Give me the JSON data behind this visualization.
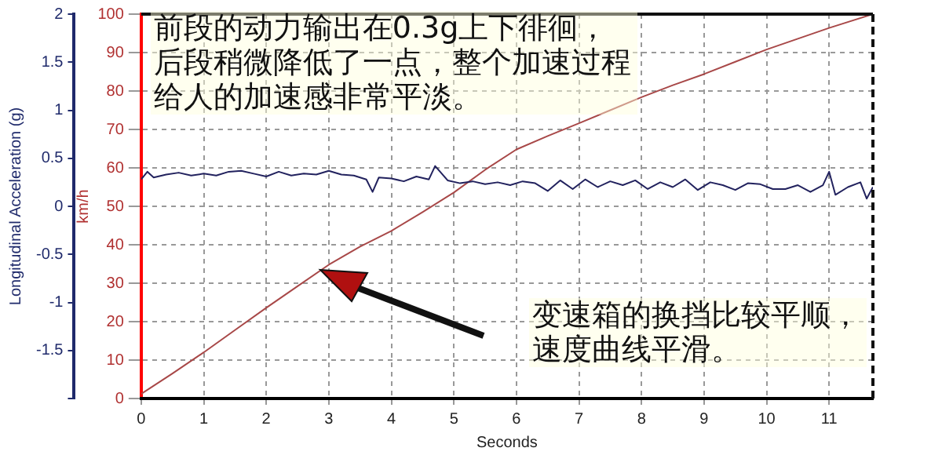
{
  "chart_data": {
    "type": "line",
    "xlabel": "Seconds",
    "ylabel": "Longitudinal Acceleration (g)",
    "y2label": "km/h",
    "xlim": [
      0,
      11.7
    ],
    "xticks": [
      0,
      1,
      2,
      3,
      4,
      5,
      6,
      7,
      8,
      9,
      10,
      11
    ],
    "ylim": [
      -2,
      2
    ],
    "yticks": [
      {
        "value": -2,
        "label": null
      },
      -1.5,
      -1,
      -0.5,
      0,
      0.5,
      1,
      1.5,
      2
    ],
    "y2lim": [
      0,
      100
    ],
    "y2ticks": [
      0,
      10,
      20,
      30,
      40,
      50,
      60,
      70,
      80,
      90,
      100
    ],
    "grid": true,
    "legend": false,
    "marker": "none",
    "line_style": "solid",
    "series": [
      {
        "color": "#22225e",
        "x": [
          0,
          0.1,
          0.2,
          0.4,
          0.6,
          0.8,
          1,
          1.2,
          1.4,
          1.6,
          1.8,
          2,
          2.2,
          2.4,
          2.6,
          2.8,
          3,
          3.2,
          3.4,
          3.6,
          3.7,
          3.8,
          4,
          4.2,
          4.4,
          4.6,
          4.7,
          4.9,
          5.1,
          5.3,
          5.5,
          5.7,
          5.9,
          6.1,
          6.3,
          6.5,
          6.7,
          6.9,
          7.1,
          7.3,
          7.5,
          7.7,
          7.9,
          8.1,
          8.3,
          8.5,
          8.7,
          8.9,
          9.1,
          9.3,
          9.5,
          9.7,
          9.9,
          10.1,
          10.3,
          10.5,
          10.7,
          10.9,
          11,
          11.1,
          11.3,
          11.5,
          11.6,
          11.7
        ],
        "values": [
          0.28,
          0.36,
          0.3,
          0.33,
          0.35,
          0.32,
          0.34,
          0.32,
          0.36,
          0.37,
          0.34,
          0.31,
          0.36,
          0.32,
          0.34,
          0.33,
          0.37,
          0.33,
          0.32,
          0.28,
          0.15,
          0.3,
          0.29,
          0.26,
          0.31,
          0.28,
          0.42,
          0.27,
          0.24,
          0.26,
          0.23,
          0.25,
          0.22,
          0.26,
          0.24,
          0.16,
          0.27,
          0.18,
          0.28,
          0.2,
          0.26,
          0.22,
          0.27,
          0.18,
          0.25,
          0.2,
          0.28,
          0.17,
          0.25,
          0.22,
          0.17,
          0.24,
          0.23,
          0.18,
          0.18,
          0.22,
          0.15,
          0.22,
          0.36,
          0.12,
          0.2,
          0.25,
          0.08,
          0.2
        ]
      },
      {
        "color": "#a84848",
        "axis": "y2",
        "x": [
          0,
          0.5,
          1,
          1.5,
          2,
          2.5,
          3,
          3.5,
          4,
          4.5,
          5,
          5.5,
          6,
          6.5,
          7,
          7.5,
          8,
          8.5,
          9,
          9.5,
          10,
          10.5,
          11,
          11.7
        ],
        "values": [
          1.2,
          6.5,
          12,
          17.8,
          23.6,
          29.2,
          34.8,
          39.5,
          43.6,
          48.5,
          53.6,
          59.5,
          64.8,
          68.3,
          71.6,
          75,
          78.4,
          81.5,
          84.4,
          87.6,
          90.8,
          93.6,
          96.4,
          100
        ]
      }
    ],
    "annotations": [
      "前段的动力输出在0.3g上下徘徊，后段稍微降低了一点，整个加速过程给人的加速感非常平淡。",
      "变速箱的换挡比较平顺，速度曲线平滑。"
    ]
  }
}
